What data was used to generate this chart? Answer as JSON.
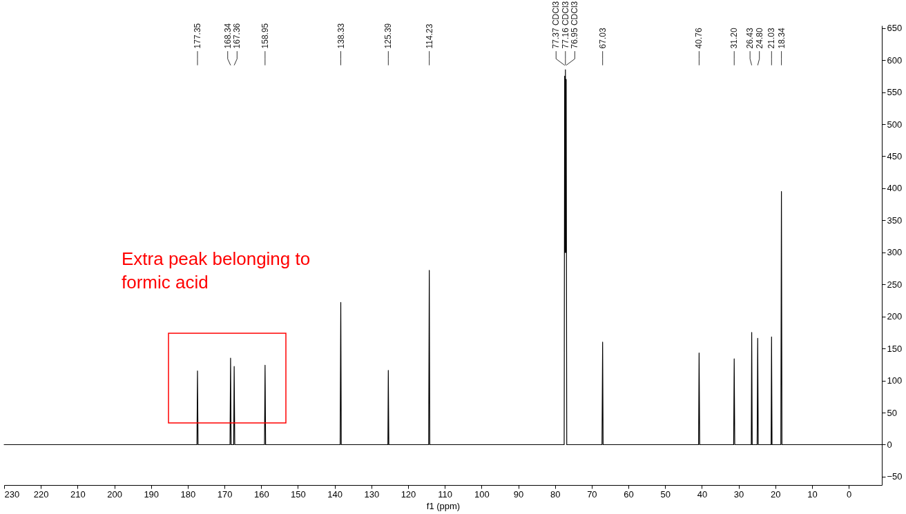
{
  "chart_data": {
    "type": "line",
    "xlabel": "f1 (ppm)",
    "xlim": [
      230,
      -9
    ],
    "ylim": [
      -63,
      654
    ],
    "xticks": [
      230,
      220,
      210,
      200,
      190,
      180,
      170,
      160,
      150,
      140,
      130,
      120,
      110,
      100,
      90,
      80,
      70,
      60,
      50,
      40,
      30,
      20,
      10,
      0
    ],
    "yticks": [
      -50,
      0,
      50,
      100,
      150,
      200,
      250,
      300,
      350,
      400,
      450,
      500,
      550,
      600,
      650
    ],
    "grid": false,
    "marker": "none",
    "line_style": "solid",
    "series": [
      {
        "color": "#000000",
        "x": [
          230,
          177.5,
          177.35,
          177.2,
          168.5,
          168.34,
          168.2,
          167.5,
          167.36,
          167.2,
          159.1,
          158.95,
          158.8,
          138.5,
          138.33,
          138.2,
          125.5,
          125.39,
          125.25,
          114.4,
          114.23,
          114.1,
          77.5,
          77.37,
          77.26,
          77.16,
          77.06,
          76.95,
          76.8,
          67.2,
          67.03,
          66.9,
          40.9,
          40.76,
          40.6,
          31.35,
          31.2,
          31.05,
          26.55,
          26.43,
          26.3,
          24.95,
          24.8,
          24.65,
          21.15,
          21.03,
          20.9,
          18.5,
          18.34,
          18.2,
          -9
        ],
        "values": [
          0,
          0,
          115,
          0,
          0,
          135,
          0,
          0,
          122,
          0,
          0,
          124,
          0,
          0,
          222,
          0,
          0,
          116,
          0,
          0,
          272,
          0,
          0,
          575,
          300,
          585,
          300,
          570,
          0,
          0,
          160,
          0,
          0,
          143,
          0,
          0,
          134,
          0,
          0,
          175,
          0,
          0,
          166,
          0,
          0,
          168,
          0,
          0,
          395,
          0,
          0
        ]
      }
    ],
    "annotations": [
      {
        "text": "177.35",
        "x": 177.35
      },
      {
        "text": "168.34",
        "x": 168.34
      },
      {
        "text": "167.36",
        "x": 167.36
      },
      {
        "text": "158.95",
        "x": 158.95
      },
      {
        "text": "138.33",
        "x": 138.33
      },
      {
        "text": "125.39",
        "x": 125.39
      },
      {
        "text": "114.23",
        "x": 114.23
      },
      {
        "text": "77.37 CDCl3",
        "x": 77.37
      },
      {
        "text": "77.16 CDCl3",
        "x": 77.16
      },
      {
        "text": "76.95 CDCl3",
        "x": 76.95
      },
      {
        "text": "67.03",
        "x": 67.03
      },
      {
        "text": "40.76",
        "x": 40.76
      },
      {
        "text": "31.20",
        "x": 31.2
      },
      {
        "text": "26.43",
        "x": 26.43
      },
      {
        "text": "24.80",
        "x": 24.8
      },
      {
        "text": "21.03",
        "x": 21.03
      },
      {
        "text": "18.34",
        "x": 18.34
      },
      "Extra peak belonging to\nformic acid"
    ]
  }
}
